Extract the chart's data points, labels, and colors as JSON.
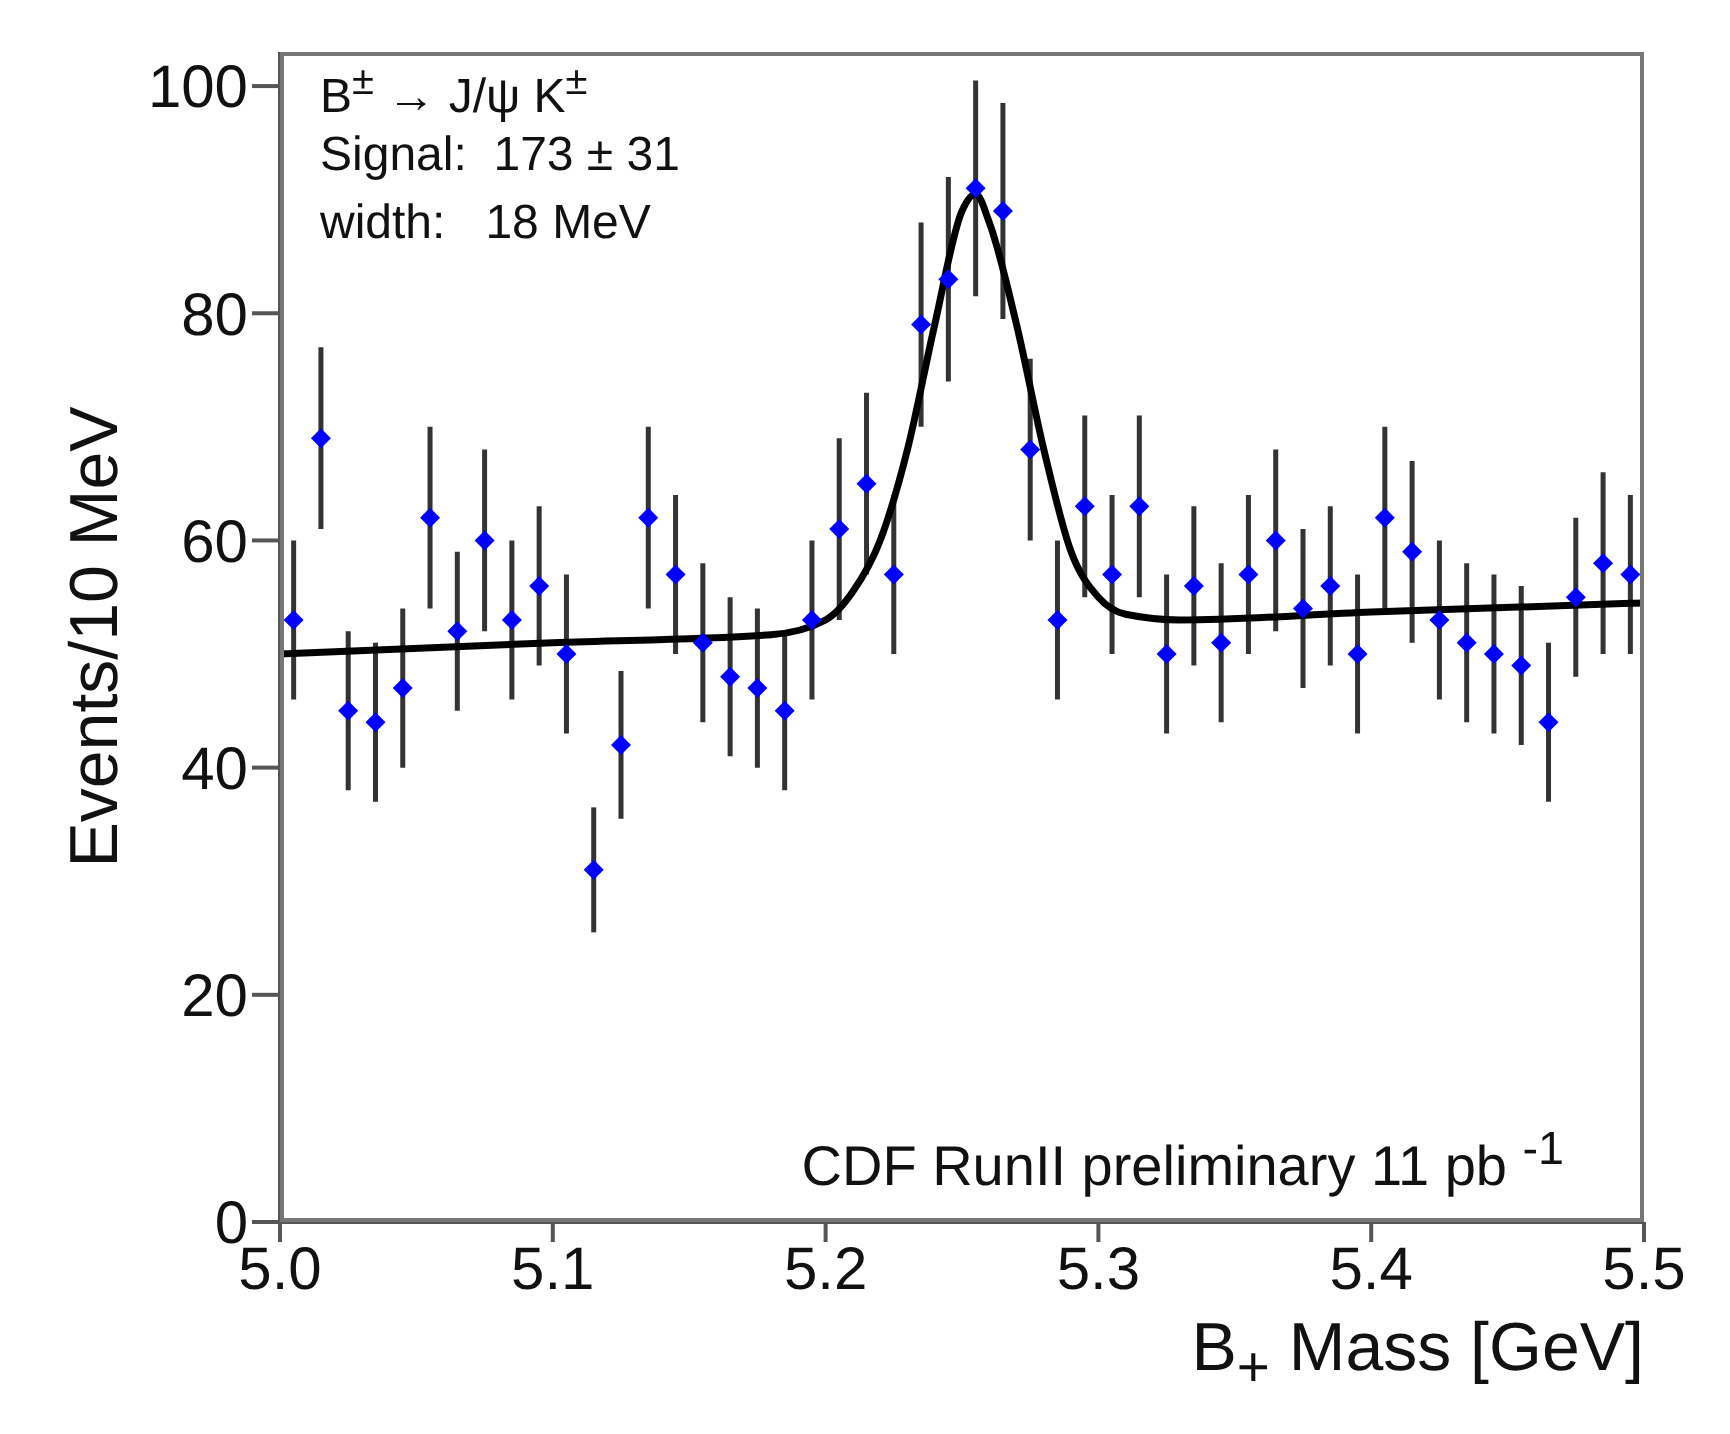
{
  "chart_data": {
    "type": "scatter",
    "xlabel": "B$_{+}$ Mass [GeV]",
    "ylabel": "Events/10 MeV",
    "annotations": [
      "B$^{±}$ → J/ψ K$^{±}$",
      "Signal:  173 ± 31",
      "width:   18 MeV",
      "CDF RunII preliminary 11 pb $^{-1}$"
    ],
    "xlim": [
      5.0,
      5.5
    ],
    "ylim": [
      0,
      103
    ],
    "xticks": [
      {
        "value": 5.0,
        "label": "5.0"
      },
      {
        "value": 5.1,
        "label": "5.1"
      },
      {
        "value": 5.2,
        "label": "5.2"
      },
      {
        "value": 5.3,
        "label": "5.3"
      },
      {
        "value": 5.4,
        "label": "5.4"
      },
      {
        "value": 5.5,
        "label": "5.5"
      }
    ],
    "yticks": [
      0,
      20,
      40,
      60,
      80,
      100
    ],
    "marker": "diamond",
    "series": [
      {
        "color": "#0000ff",
        "x": [
          5.005,
          5.015,
          5.025,
          5.035,
          5.045,
          5.055,
          5.065,
          5.075,
          5.085,
          5.095,
          5.105,
          5.115,
          5.125,
          5.135,
          5.145,
          5.155,
          5.165,
          5.175,
          5.185,
          5.195,
          5.205,
          5.215,
          5.225,
          5.235,
          5.245,
          5.255,
          5.265,
          5.275,
          5.285,
          5.295,
          5.305,
          5.315,
          5.325,
          5.335,
          5.345,
          5.355,
          5.365,
          5.375,
          5.385,
          5.395,
          5.405,
          5.415,
          5.425,
          5.435,
          5.445,
          5.455,
          5.465,
          5.475,
          5.485,
          5.495
        ],
        "values": [
          53,
          69,
          45,
          44,
          47,
          62,
          52,
          60,
          53,
          56,
          50,
          31,
          42,
          62,
          57,
          51,
          48,
          47,
          45,
          53,
          61,
          65,
          57,
          79,
          83,
          91,
          89,
          68,
          53,
          63,
          57,
          63,
          50,
          56,
          51,
          57,
          60,
          54,
          56,
          50,
          62,
          59,
          53,
          51,
          50,
          49,
          44,
          55,
          58,
          57
        ],
        "errors": [
          7,
          8,
          7,
          7,
          7,
          8,
          7,
          8,
          7,
          7,
          7,
          5.5,
          6.5,
          8,
          7,
          7,
          7,
          7,
          7,
          7,
          8,
          8,
          7,
          9,
          9,
          9.5,
          9.5,
          8,
          7,
          8,
          7,
          8,
          7,
          7,
          7,
          7,
          8,
          7,
          7,
          7,
          8,
          8,
          7,
          7,
          7,
          7,
          7,
          7,
          8,
          7
        ]
      },
      {
        "type": "line",
        "marker": "none",
        "color": "#000000",
        "x": [
          5.0,
          5.1,
          5.18,
          5.2,
          5.21,
          5.22,
          5.23,
          5.24,
          5.25,
          5.255,
          5.26,
          5.27,
          5.28,
          5.29,
          5.3,
          5.31,
          5.33,
          5.4,
          5.5
        ],
        "values": [
          50,
          51,
          51.7,
          53,
          55.5,
          60,
          68,
          79,
          89,
          90.5,
          88,
          79,
          68,
          59,
          55,
          53.5,
          53,
          53.7,
          54.5
        ]
      }
    ]
  }
}
